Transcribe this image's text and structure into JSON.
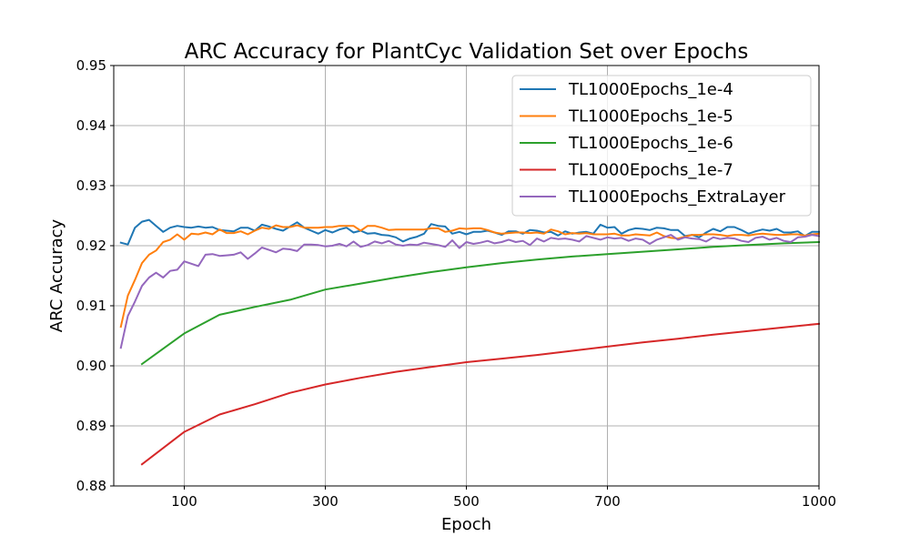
{
  "chart_data": {
    "type": "line",
    "title": "ARC Accuracy for PlantCyc Validation Set over Epochs",
    "xlabel": "Epoch",
    "ylabel": "ARC Accuracy",
    "xlim": [
      0,
      1000
    ],
    "ylim": [
      0.88,
      0.95
    ],
    "xticks": [
      100,
      300,
      500,
      700,
      1000
    ],
    "yticks": [
      "0.88",
      "0.89",
      "0.90",
      "0.91",
      "0.92",
      "0.93",
      "0.94",
      "0.95"
    ],
    "grid": true,
    "legend_position": "top-right",
    "series": [
      {
        "name": "TL1000Epochs_1e-4",
        "color": "#1f77b4",
        "x": [
          10,
          20,
          30,
          40,
          50,
          60,
          70,
          80,
          90,
          100,
          110,
          120,
          130,
          140,
          150,
          160,
          170,
          180,
          190,
          200,
          210,
          220,
          230,
          240,
          250,
          260,
          270,
          280,
          290,
          300,
          310,
          320,
          330,
          340,
          350,
          360,
          370,
          380,
          390,
          400,
          410,
          420,
          430,
          440,
          450,
          460,
          470,
          480,
          490,
          500,
          510,
          520,
          530,
          540,
          550,
          560,
          570,
          580,
          590,
          600,
          610,
          620,
          630,
          640,
          650,
          660,
          670,
          680,
          690,
          700,
          710,
          720,
          730,
          740,
          750,
          760,
          770,
          780,
          790,
          800,
          810,
          820,
          830,
          840,
          850,
          860,
          870,
          880,
          890,
          900,
          910,
          920,
          930,
          940,
          950,
          960,
          970,
          980,
          990,
          1000
        ],
        "y": [
          0.9205,
          0.9202,
          0.923,
          0.924,
          0.9243,
          0.9233,
          0.9223,
          0.923,
          0.9233,
          0.9231,
          0.923,
          0.9232,
          0.923,
          0.9231,
          0.9226,
          0.9225,
          0.9224,
          0.923,
          0.923,
          0.9225,
          0.9235,
          0.9232,
          0.9228,
          0.9225,
          0.9232,
          0.9239,
          0.923,
          0.9225,
          0.922,
          0.9226,
          0.9222,
          0.9227,
          0.923,
          0.9222,
          0.9225,
          0.922,
          0.9221,
          0.9218,
          0.9217,
          0.9214,
          0.9207,
          0.9212,
          0.9215,
          0.922,
          0.9236,
          0.9233,
          0.9232,
          0.922,
          0.9223,
          0.9219,
          0.9223,
          0.9223,
          0.9225,
          0.9222,
          0.9218,
          0.9224,
          0.9224,
          0.922,
          0.9226,
          0.9225,
          0.9222,
          0.9223,
          0.9217,
          0.9224,
          0.922,
          0.9222,
          0.9223,
          0.922,
          0.9235,
          0.923,
          0.9231,
          0.922,
          0.9226,
          0.9229,
          0.9228,
          0.9226,
          0.923,
          0.9229,
          0.9226,
          0.9226,
          0.9216,
          0.9218,
          0.9214,
          0.9222,
          0.9228,
          0.9224,
          0.9231,
          0.9231,
          0.9226,
          0.922,
          0.9224,
          0.9227,
          0.9225,
          0.9228,
          0.9222,
          0.9222,
          0.9224,
          0.9216,
          0.9223,
          0.9223
        ]
      },
      {
        "name": "TL1000Epochs_1e-5",
        "color": "#ff7f0e",
        "x": [
          10,
          20,
          30,
          40,
          50,
          60,
          70,
          80,
          90,
          100,
          110,
          120,
          130,
          140,
          150,
          160,
          170,
          180,
          190,
          200,
          210,
          220,
          230,
          240,
          250,
          260,
          270,
          280,
          290,
          300,
          310,
          320,
          330,
          340,
          350,
          360,
          370,
          380,
          390,
          400,
          410,
          420,
          430,
          440,
          450,
          460,
          470,
          480,
          490,
          500,
          510,
          520,
          530,
          540,
          550,
          560,
          570,
          580,
          590,
          600,
          610,
          620,
          630,
          640,
          650,
          660,
          670,
          680,
          690,
          700,
          710,
          720,
          730,
          740,
          750,
          760,
          770,
          780,
          790,
          800,
          810,
          820,
          830,
          840,
          850,
          860,
          870,
          880,
          890,
          900,
          910,
          920,
          930,
          940,
          950,
          960,
          970,
          980,
          990,
          1000
        ],
        "y": [
          0.9065,
          0.9117,
          0.9143,
          0.9171,
          0.9185,
          0.9192,
          0.9206,
          0.921,
          0.9219,
          0.921,
          0.922,
          0.9219,
          0.9222,
          0.9219,
          0.9227,
          0.9221,
          0.9221,
          0.9224,
          0.9219,
          0.9225,
          0.923,
          0.9228,
          0.9234,
          0.9231,
          0.9231,
          0.9234,
          0.923,
          0.923,
          0.923,
          0.9231,
          0.9231,
          0.9233,
          0.9233,
          0.9233,
          0.9225,
          0.9233,
          0.9233,
          0.923,
          0.9226,
          0.9227,
          0.9227,
          0.9227,
          0.9227,
          0.9227,
          0.9229,
          0.9229,
          0.9223,
          0.9225,
          0.9229,
          0.9228,
          0.9229,
          0.9229,
          0.9226,
          0.9222,
          0.922,
          0.9221,
          0.9222,
          0.9222,
          0.9221,
          0.9222,
          0.922,
          0.9227,
          0.9224,
          0.9219,
          0.9221,
          0.922,
          0.9221,
          0.9219,
          0.9219,
          0.9219,
          0.922,
          0.9217,
          0.9217,
          0.9219,
          0.9218,
          0.9217,
          0.9222,
          0.9216,
          0.9213,
          0.9212,
          0.9215,
          0.9218,
          0.9218,
          0.9219,
          0.9219,
          0.9218,
          0.9216,
          0.9218,
          0.9218,
          0.9217,
          0.9219,
          0.922,
          0.9219,
          0.9218,
          0.9218,
          0.9219,
          0.9219,
          0.9217,
          0.9219,
          0.922
        ]
      },
      {
        "name": "TL1000Epochs_1e-6",
        "color": "#2ca02c",
        "x": [
          40,
          100,
          150,
          200,
          250,
          300,
          350,
          400,
          450,
          500,
          550,
          600,
          650,
          700,
          750,
          800,
          850,
          900,
          950,
          1000
        ],
        "y": [
          0.9003,
          0.9054,
          0.9085,
          0.9098,
          0.911,
          0.9127,
          0.9137,
          0.9147,
          0.9156,
          0.9164,
          0.9171,
          0.9177,
          0.9182,
          0.9186,
          0.919,
          0.9194,
          0.9198,
          0.9201,
          0.9204,
          0.9206
        ]
      },
      {
        "name": "TL1000Epochs_1e-7",
        "color": "#d62728",
        "x": [
          40,
          100,
          150,
          200,
          250,
          300,
          350,
          400,
          450,
          500,
          550,
          600,
          650,
          700,
          750,
          800,
          850,
          900,
          950,
          1000
        ],
        "y": [
          0.8836,
          0.889,
          0.8919,
          0.8936,
          0.8955,
          0.8969,
          0.898,
          0.899,
          0.8998,
          0.9006,
          0.9012,
          0.9018,
          0.9025,
          0.9032,
          0.9039,
          0.9045,
          0.9052,
          0.9058,
          0.9064,
          0.907
        ]
      },
      {
        "name": "TL1000Epochs_ExtraLayer",
        "color": "#9467bd",
        "x": [
          10,
          20,
          30,
          40,
          50,
          60,
          70,
          80,
          90,
          100,
          110,
          120,
          130,
          140,
          150,
          160,
          170,
          180,
          190,
          200,
          210,
          220,
          230,
          240,
          250,
          260,
          270,
          280,
          290,
          300,
          310,
          320,
          330,
          340,
          350,
          360,
          370,
          380,
          390,
          400,
          410,
          420,
          430,
          440,
          450,
          460,
          470,
          480,
          490,
          500,
          510,
          520,
          530,
          540,
          550,
          560,
          570,
          580,
          590,
          600,
          610,
          620,
          630,
          640,
          650,
          660,
          670,
          680,
          690,
          700,
          710,
          720,
          730,
          740,
          750,
          760,
          770,
          780,
          790,
          800,
          810,
          820,
          830,
          840,
          850,
          860,
          870,
          880,
          890,
          900,
          910,
          920,
          930,
          940,
          950,
          960,
          970,
          980,
          990,
          1000
        ],
        "y": [
          0.903,
          0.9083,
          0.9107,
          0.9133,
          0.9147,
          0.9155,
          0.9147,
          0.9158,
          0.916,
          0.9174,
          0.917,
          0.9166,
          0.9185,
          0.9186,
          0.9183,
          0.9184,
          0.9185,
          0.9189,
          0.9178,
          0.9187,
          0.9197,
          0.9193,
          0.9189,
          0.9195,
          0.9194,
          0.9191,
          0.9202,
          0.9202,
          0.9201,
          0.9199,
          0.92,
          0.9203,
          0.9199,
          0.9207,
          0.9198,
          0.9201,
          0.9207,
          0.9204,
          0.9208,
          0.9202,
          0.92,
          0.9202,
          0.9201,
          0.9205,
          0.9203,
          0.9201,
          0.9198,
          0.9209,
          0.9196,
          0.9206,
          0.9203,
          0.9205,
          0.9208,
          0.9204,
          0.9206,
          0.921,
          0.9206,
          0.9208,
          0.9201,
          0.9212,
          0.9207,
          0.9213,
          0.9211,
          0.9212,
          0.921,
          0.9207,
          0.9216,
          0.9213,
          0.921,
          0.9214,
          0.9212,
          0.9213,
          0.9208,
          0.9212,
          0.921,
          0.9203,
          0.921,
          0.9214,
          0.9218,
          0.921,
          0.9214,
          0.9212,
          0.9211,
          0.9207,
          0.9214,
          0.9211,
          0.9213,
          0.9212,
          0.9208,
          0.9206,
          0.9213,
          0.9215,
          0.921,
          0.9213,
          0.9208,
          0.9206,
          0.9214,
          0.9215,
          0.9218,
          0.9216
        ]
      }
    ]
  }
}
